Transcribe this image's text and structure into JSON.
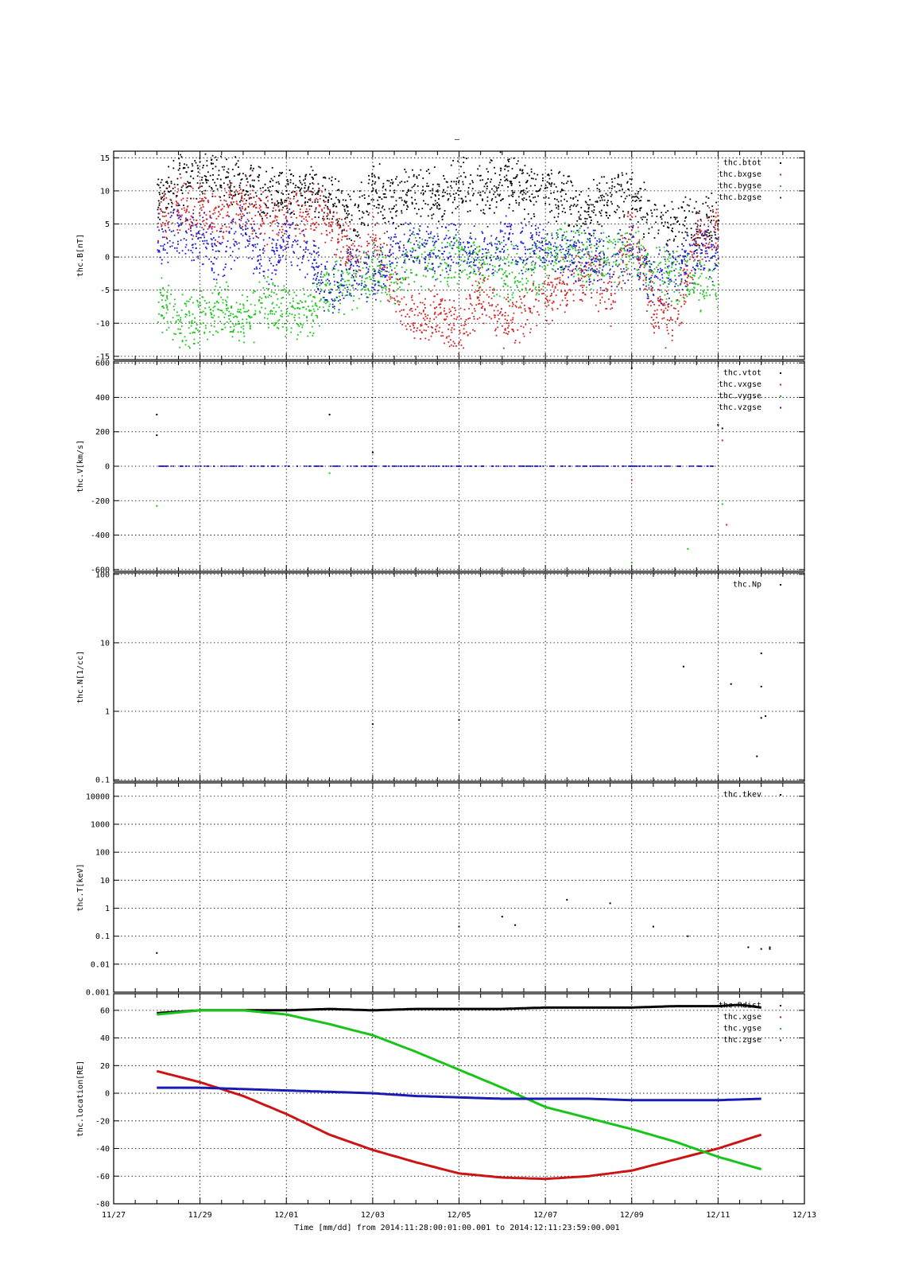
{
  "figure": {
    "title_mark": "–",
    "time_axis": {
      "label": "Time [mm/dd]  from 2014:11:28:00:01:00.001  to  2014:12:11:23:59:00.001",
      "tick_labels": [
        "11/27",
        "11/29",
        "12/01",
        "12/03",
        "12/05",
        "12/07",
        "12/09",
        "12/11",
        "12/13"
      ],
      "range_days": [
        0,
        16
      ],
      "start_date": "2014-11-27"
    }
  },
  "chart_data": [
    {
      "type": "scatter",
      "ylabel": "thc.B[nT]",
      "ylim": [
        -15.5,
        16
      ],
      "yscale": "linear",
      "yticks": [
        15,
        10,
        5,
        0,
        -5,
        -10,
        -15
      ],
      "ytick_labels": [
        "15",
        "10",
        "5",
        "0",
        "-5",
        "-10",
        "-15"
      ],
      "grid": true,
      "legend_placement": "top-right",
      "x_range_days": [
        1.0,
        15.0
      ],
      "series": [
        {
          "name": "thc.btot",
          "color": "#000000",
          "x": [
            1.0,
            1.5,
            2.0,
            2.5,
            3.0,
            3.5,
            4.0,
            4.5,
            5.0,
            5.5,
            6.0,
            6.5,
            7.0,
            7.5,
            8.0,
            8.5,
            9.0,
            9.5,
            10.0,
            10.5,
            11.0,
            11.5,
            12.0,
            12.5,
            13.0,
            13.5,
            14.0
          ],
          "y": [
            8,
            12,
            13,
            12,
            11,
            10,
            9,
            10,
            9,
            5,
            10,
            8,
            10,
            9,
            11,
            10,
            12,
            10,
            10,
            9,
            7,
            9,
            9,
            6,
            5,
            5,
            5
          ]
        },
        {
          "name": "thc.bxgse",
          "color": "#d42020",
          "x": [
            1.0,
            1.5,
            2.0,
            2.5,
            3.0,
            3.5,
            4.0,
            4.5,
            5.0,
            5.5,
            6.0,
            6.5,
            7.0,
            7.5,
            8.0,
            8.5,
            9.0,
            9.5,
            10.0,
            10.5,
            11.0,
            11.5,
            12.0,
            12.5,
            13.0,
            13.5,
            14.0
          ],
          "y": [
            5,
            8,
            7,
            6,
            8,
            5,
            6,
            7,
            5,
            0,
            3,
            -5,
            -10,
            -8,
            -12,
            -5,
            -10,
            -8,
            -6,
            -4,
            -2,
            -6,
            4,
            -8,
            -10,
            3,
            4
          ]
        },
        {
          "name": "thc.bygse",
          "color": "#18c418",
          "x": [
            1.0,
            1.5,
            2.0,
            2.5,
            3.0,
            3.5,
            4.0,
            4.5,
            5.0,
            5.5,
            6.0,
            6.5,
            7.0,
            7.5,
            8.0,
            8.5,
            9.0,
            9.5,
            10.0,
            10.5,
            11.0,
            11.5,
            12.0,
            12.5,
            13.0,
            13.5,
            14.0
          ],
          "y": [
            -6,
            -10,
            -9,
            -8,
            -10,
            -7,
            -8,
            -9,
            -4,
            -5,
            -2,
            -3,
            0,
            -1,
            0,
            -2,
            -2,
            -3,
            0,
            2,
            -1,
            0,
            1,
            -2,
            -3,
            -4,
            -4
          ]
        },
        {
          "name": "thc.bzgse",
          "color": "#1a1ad2",
          "x": [
            1.0,
            1.5,
            2.0,
            2.5,
            3.0,
            3.5,
            4.0,
            4.5,
            5.0,
            5.5,
            6.0,
            6.5,
            7.0,
            7.5,
            8.0,
            8.5,
            9.0,
            9.5,
            10.0,
            10.5,
            11.0,
            11.5,
            12.0,
            12.5,
            13.0,
            13.5,
            14.0
          ],
          "y": [
            2,
            4,
            3,
            0,
            5,
            -2,
            3,
            1,
            -6,
            -2,
            -3,
            1,
            2,
            1,
            1,
            0,
            2,
            1,
            2,
            0,
            0,
            -1,
            1,
            -4,
            -2,
            1,
            0
          ]
        }
      ]
    },
    {
      "type": "scatter",
      "ylabel": "thc.V[km/s]",
      "ylim": [
        -610,
        610
      ],
      "yscale": "linear",
      "yticks": [
        600,
        400,
        200,
        0,
        -200,
        -400,
        -600
      ],
      "ytick_labels": [
        "600",
        "400",
        "200",
        "0",
        "-200",
        "-400",
        "-600"
      ],
      "grid": true,
      "legend_placement": "top-right",
      "x_range_days": [
        1.0,
        15.0
      ],
      "series": [
        {
          "name": "thc.vtot",
          "color": "#000000",
          "x": [
            1.0,
            1.0,
            5.0,
            6.0,
            12.0,
            14.0,
            14.1
          ],
          "y": [
            300,
            180,
            300,
            80,
            570,
            240,
            220
          ]
        },
        {
          "name": "thc.vxgse",
          "color": "#d42020",
          "x": [
            12.0,
            14.1,
            14.2
          ],
          "y": [
            -80,
            150,
            -340
          ]
        },
        {
          "name": "thc.vygse",
          "color": "#18c418",
          "x": [
            1.0,
            5.0,
            12.0,
            13.3,
            14.1
          ],
          "y": [
            -230,
            -40,
            -560,
            -480,
            -220
          ]
        },
        {
          "name": "thc.vzgse",
          "color": "#1a1ad2",
          "x": [
            1.0,
            1.5,
            2.0,
            2.5,
            3.0,
            3.5,
            4.0,
            4.5,
            5.0,
            5.5,
            6.0,
            6.5,
            7.0,
            7.5,
            8.0,
            8.5,
            9.0,
            9.5,
            10.0,
            10.5,
            11.0,
            11.5,
            12.0,
            12.5,
            13.0,
            13.5,
            14.0
          ],
          "y": [
            0,
            0,
            0,
            0,
            0,
            0,
            0,
            0,
            0,
            0,
            0,
            0,
            0,
            0,
            0,
            0,
            0,
            0,
            0,
            0,
            0,
            0,
            0,
            0,
            0,
            0,
            0
          ]
        }
      ]
    },
    {
      "type": "scatter",
      "ylabel": "thc.N[1/cc]",
      "ylim": [
        0.095,
        105
      ],
      "yscale": "log",
      "yticks": [
        100,
        10,
        1,
        0.1
      ],
      "ytick_labels": [
        "100",
        "10",
        "1",
        "0.1"
      ],
      "grid": true,
      "legend_placement": "top-right",
      "x_range_days": [
        1.0,
        15.0
      ],
      "series": [
        {
          "name": "thc.Np",
          "color": "#000000",
          "x": [
            6.0,
            8.0,
            13.2,
            14.3,
            14.9,
            15.0,
            15.0,
            15.0,
            15.1
          ],
          "y": [
            0.65,
            0.75,
            4.5,
            2.5,
            0.22,
            0.8,
            7.0,
            2.3,
            0.85
          ]
        }
      ]
    },
    {
      "type": "scatter",
      "ylabel": "thc.T[keV]",
      "ylim": [
        0.001,
        30000
      ],
      "yscale": "log",
      "yticks": [
        10000,
        1000,
        100,
        10,
        1,
        0.1,
        0.01,
        0.001
      ],
      "ytick_labels": [
        "10000",
        "1000",
        "100",
        "10",
        "1",
        "0.1",
        "0.01",
        "0.001"
      ],
      "grid": true,
      "legend_placement": "top-right",
      "x_range_days": [
        1.0,
        15.0
      ],
      "series": [
        {
          "name": "thc.tkev",
          "color": "#000000",
          "x": [
            1.0,
            8.0,
            9.0,
            9.3,
            10.5,
            11.5,
            12.5,
            13.3,
            14.7,
            15.0,
            15.2,
            15.2
          ],
          "y": [
            0.025,
            0.22,
            0.5,
            0.25,
            2.0,
            1.5,
            0.22,
            0.1,
            0.04,
            0.035,
            0.04,
            0.035
          ]
        }
      ]
    },
    {
      "type": "line",
      "ylabel": "thc.location[RE]",
      "ylim": [
        -80,
        72
      ],
      "yscale": "linear",
      "yticks": [
        60,
        40,
        20,
        0,
        -20,
        -40,
        -60,
        -80
      ],
      "ytick_labels": [
        "60",
        "40",
        "20",
        "0",
        "-20",
        "-40",
        "-60",
        "-80"
      ],
      "grid": true,
      "legend_placement": "top-right",
      "x_range_days": [
        1.0,
        15.0
      ],
      "series": [
        {
          "name": "thc.Rdist",
          "color": "#000000",
          "x": [
            1.0,
            2.0,
            3.0,
            4.0,
            5.0,
            6.0,
            7.0,
            8.0,
            9.0,
            10.0,
            11.0,
            12.0,
            13.0,
            14.0,
            14.5,
            15.0
          ],
          "y": [
            58,
            60,
            60,
            60,
            61,
            60,
            61,
            61,
            61,
            62,
            62,
            62,
            63,
            63,
            64,
            62
          ]
        },
        {
          "name": "thc.xgse",
          "color": "#cc1414",
          "x": [
            1.0,
            2.0,
            3.0,
            4.0,
            5.0,
            6.0,
            7.0,
            8.0,
            9.0,
            10.0,
            11.0,
            12.0,
            13.0,
            14.0,
            15.0
          ],
          "y": [
            16,
            8,
            -2,
            -15,
            -30,
            -41,
            -50,
            -58,
            -61,
            -62,
            -60,
            -56,
            -48,
            -40,
            -30
          ]
        },
        {
          "name": "thc.ygse",
          "color": "#18c418",
          "x": [
            1.0,
            2.0,
            3.0,
            4.0,
            5.0,
            6.0,
            7.0,
            8.0,
            9.0,
            10.0,
            11.0,
            12.0,
            13.0,
            14.0,
            15.0
          ],
          "y": [
            57,
            60,
            60,
            57,
            50,
            42,
            30,
            17,
            4,
            -10,
            -18,
            -26,
            -35,
            -46,
            -55
          ]
        },
        {
          "name": "thc.zgse",
          "color": "#1a1ab4",
          "x": [
            1.0,
            2.0,
            3.0,
            4.0,
            5.0,
            6.0,
            7.0,
            8.0,
            9.0,
            10.0,
            11.0,
            12.0,
            13.0,
            14.0,
            15.0
          ],
          "y": [
            4,
            4,
            3,
            2,
            1,
            0,
            -2,
            -3,
            -4,
            -4,
            -4,
            -5,
            -5,
            -5,
            -4
          ]
        }
      ]
    }
  ]
}
